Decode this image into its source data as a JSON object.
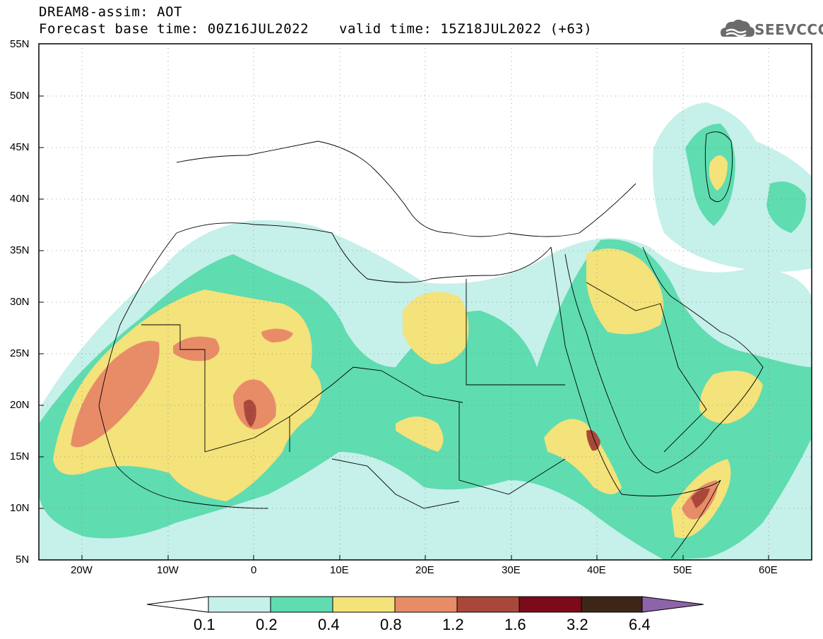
{
  "header": {
    "title": "DREAM8-assim: AOT",
    "base_time": "Forecast base time: 00Z16JUL2022",
    "valid_time": "valid time: 15Z18JUL2022 (+63)"
  },
  "logo": {
    "text": "SEEVCCC",
    "icon": "cloud-icon",
    "color": "#6b6b6b"
  },
  "map": {
    "lat_labels": [
      "55N",
      "50N",
      "45N",
      "40N",
      "35N",
      "30N",
      "25N",
      "20N",
      "15N",
      "10N",
      "5N"
    ],
    "lon_labels": [
      "20W",
      "10W",
      "0",
      "10E",
      "20E",
      "30E",
      "40E",
      "50E",
      "60E"
    ]
  },
  "legend": {
    "labels": [
      "0.1",
      "0.2",
      "0.4",
      "0.8",
      "1.2",
      "1.6",
      "3.2",
      "6.4"
    ],
    "colors": [
      "#c6f0ea",
      "#5fdcb0",
      "#f4e27a",
      "#e88c68",
      "#a9483a",
      "#7b0a1a",
      "#3d2618",
      "#8e64a8"
    ],
    "under_color": "#ffffff"
  },
  "palette": {
    "c1": "#c6f0ea",
    "c2": "#5fdcb0",
    "c3": "#f4e27a",
    "c4": "#e88c68",
    "c5": "#a9483a",
    "c6": "#7b0a1a"
  }
}
